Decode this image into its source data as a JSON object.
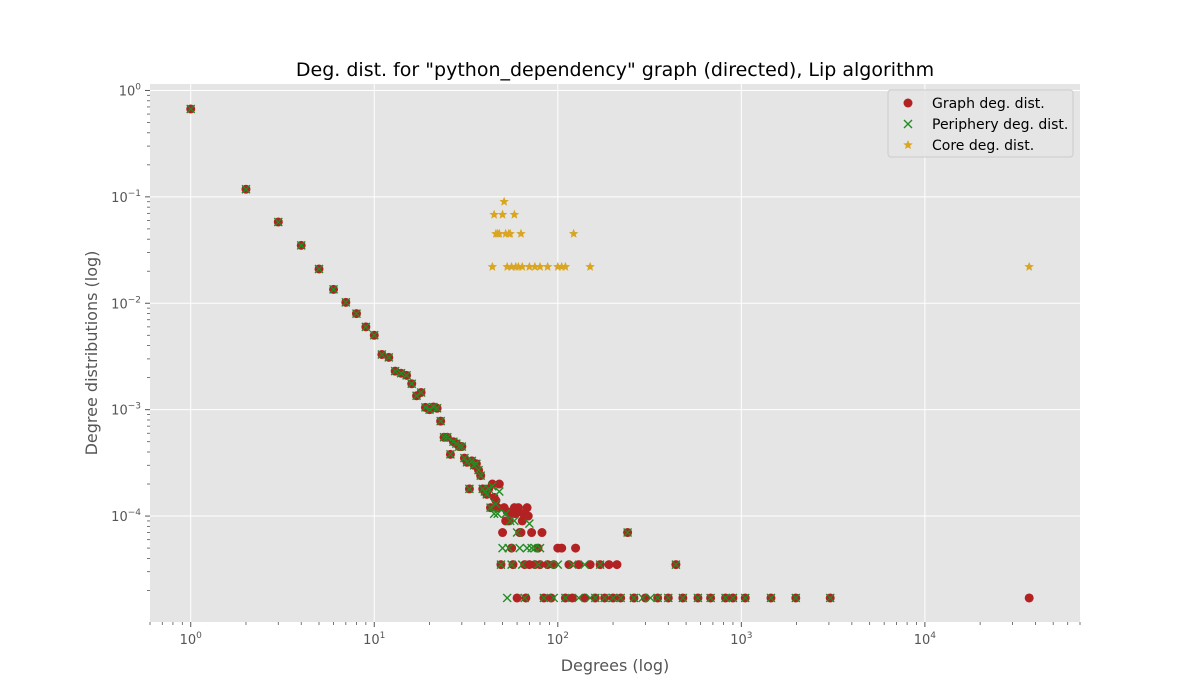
{
  "chart_data": {
    "type": "scatter",
    "title": "Deg. dist. for \"python_dependency\" graph (directed), Lip algorithm",
    "xlabel": "Degrees (log)",
    "ylabel": "Degree distributions (log)",
    "xscale": "log",
    "yscale": "log",
    "xlim": [
      0.6,
      70000
    ],
    "ylim": [
      1.01e-05,
      1.15
    ],
    "grid": true,
    "legend_position": "top-right",
    "x_ticks": [
      {
        "value": 1,
        "base": "10",
        "exp": "0"
      },
      {
        "value": 10,
        "base": "10",
        "exp": "1"
      },
      {
        "value": 100,
        "base": "10",
        "exp": "2"
      },
      {
        "value": 1000,
        "base": "10",
        "exp": "3"
      },
      {
        "value": 10000,
        "base": "10",
        "exp": "4"
      }
    ],
    "y_ticks": [
      {
        "value": 1,
        "base": "10",
        "exp": "0"
      },
      {
        "value": 0.1,
        "base": "10",
        "exp": "−1"
      },
      {
        "value": 0.01,
        "base": "10",
        "exp": "−2"
      },
      {
        "value": 0.001,
        "base": "10",
        "exp": "−3"
      },
      {
        "value": 0.0001,
        "base": "10",
        "exp": "−4"
      }
    ],
    "series": [
      {
        "name": "Graph deg. dist.",
        "marker": "circle",
        "color": "#b22222",
        "points": [
          [
            1,
            0.67
          ],
          [
            2,
            0.118
          ],
          [
            3,
            0.058
          ],
          [
            4,
            0.035
          ],
          [
            5,
            0.021
          ],
          [
            6,
            0.0135
          ],
          [
            7,
            0.0102
          ],
          [
            8,
            0.008
          ],
          [
            9,
            0.006
          ],
          [
            10,
            0.005
          ],
          [
            11,
            0.0033
          ],
          [
            12,
            0.0031
          ],
          [
            13,
            0.0023
          ],
          [
            14,
            0.0022
          ],
          [
            15,
            0.0021
          ],
          [
            16,
            0.00175
          ],
          [
            17,
            0.00135
          ],
          [
            18,
            0.00145
          ],
          [
            19,
            0.00105
          ],
          [
            20,
            0.001
          ],
          [
            21,
            0.00106
          ],
          [
            22,
            0.00103
          ],
          [
            23,
            0.00078
          ],
          [
            24,
            0.00055
          ],
          [
            25,
            0.00055
          ],
          [
            26,
            0.00038
          ],
          [
            27,
            0.0005
          ],
          [
            28,
            0.00048
          ],
          [
            29,
            0.00045
          ],
          [
            30,
            0.00045
          ],
          [
            31,
            0.00035
          ],
          [
            32,
            0.00032
          ],
          [
            33,
            0.00018
          ],
          [
            34,
            0.00033
          ],
          [
            35,
            0.0003
          ],
          [
            36,
            0.00031
          ],
          [
            37,
            0.00027
          ],
          [
            38,
            0.00024
          ],
          [
            39,
            0.00018
          ],
          [
            40,
            0.00017
          ],
          [
            41,
            0.00016
          ],
          [
            42,
            0.00018
          ],
          [
            43,
            0.00012
          ],
          [
            44,
            0.0002
          ],
          [
            45,
            0.00015
          ],
          [
            46,
            0.00014
          ],
          [
            47,
            0.00012
          ],
          [
            48,
            0.0002
          ],
          [
            49,
            3.5e-05
          ],
          [
            50,
            7e-05
          ],
          [
            51,
            0.00012
          ],
          [
            52,
            9e-05
          ],
          [
            53,
            0.00011
          ],
          [
            54,
            9e-05
          ],
          [
            55,
            0.000105
          ],
          [
            56,
            5e-05
          ],
          [
            57,
            3.5e-05
          ],
          [
            58,
            0.00012
          ],
          [
            59,
            0.000105
          ],
          [
            60,
            1.7e-05
          ],
          [
            61,
            0.00012
          ],
          [
            62,
            7e-05
          ],
          [
            63,
            7e-05
          ],
          [
            64,
            9e-05
          ],
          [
            65,
            0.000105
          ],
          [
            66,
            3.5e-05
          ],
          [
            67,
            1.7e-05
          ],
          [
            68,
            0.00012
          ],
          [
            69,
            0.0001
          ],
          [
            70,
            3.5e-05
          ],
          [
            72,
            7e-05
          ],
          [
            75,
            3.5e-05
          ],
          [
            78,
            5e-05
          ],
          [
            80,
            3.5e-05
          ],
          [
            82,
            7e-05
          ],
          [
            84,
            1.7e-05
          ],
          [
            88,
            3.5e-05
          ],
          [
            92,
            1.7e-05
          ],
          [
            95,
            3.5e-05
          ],
          [
            100,
            5e-05
          ],
          [
            105,
            5e-05
          ],
          [
            110,
            1.7e-05
          ],
          [
            115,
            3.5e-05
          ],
          [
            120,
            1.7e-05
          ],
          [
            125,
            5e-05
          ],
          [
            130,
            3.5e-05
          ],
          [
            140,
            1.7e-05
          ],
          [
            150,
            3.5e-05
          ],
          [
            160,
            1.7e-05
          ],
          [
            170,
            3.5e-05
          ],
          [
            180,
            1.7e-05
          ],
          [
            190,
            3.5e-05
          ],
          [
            200,
            1.7e-05
          ],
          [
            210,
            3.5e-05
          ],
          [
            220,
            1.7e-05
          ],
          [
            240,
            7e-05
          ],
          [
            260,
            1.7e-05
          ],
          [
            300,
            1.7e-05
          ],
          [
            350,
            1.7e-05
          ],
          [
            400,
            1.7e-05
          ],
          [
            440,
            3.5e-05
          ],
          [
            480,
            1.7e-05
          ],
          [
            580,
            1.7e-05
          ],
          [
            680,
            1.7e-05
          ],
          [
            820,
            1.7e-05
          ],
          [
            900,
            1.7e-05
          ],
          [
            1050,
            1.7e-05
          ],
          [
            1450,
            1.7e-05
          ],
          [
            1980,
            1.7e-05
          ],
          [
            3050,
            1.7e-05
          ],
          [
            37000,
            1.7e-05
          ]
        ]
      },
      {
        "name": "Periphery deg. dist.",
        "marker": "x",
        "color": "#228b22",
        "points": [
          [
            1,
            0.67
          ],
          [
            2,
            0.118
          ],
          [
            3,
            0.058
          ],
          [
            4,
            0.035
          ],
          [
            5,
            0.021
          ],
          [
            6,
            0.0135
          ],
          [
            7,
            0.0102
          ],
          [
            8,
            0.008
          ],
          [
            9,
            0.006
          ],
          [
            10,
            0.005
          ],
          [
            11,
            0.0033
          ],
          [
            12,
            0.0031
          ],
          [
            13,
            0.0023
          ],
          [
            14,
            0.0022
          ],
          [
            15,
            0.0021
          ],
          [
            16,
            0.00175
          ],
          [
            17,
            0.00135
          ],
          [
            18,
            0.00145
          ],
          [
            19,
            0.00105
          ],
          [
            20,
            0.001
          ],
          [
            21,
            0.00106
          ],
          [
            22,
            0.00103
          ],
          [
            23,
            0.00078
          ],
          [
            24,
            0.00055
          ],
          [
            25,
            0.00055
          ],
          [
            26,
            0.00038
          ],
          [
            27,
            0.0005
          ],
          [
            28,
            0.00048
          ],
          [
            29,
            0.00045
          ],
          [
            30,
            0.00045
          ],
          [
            31,
            0.00035
          ],
          [
            32,
            0.00032
          ],
          [
            33,
            0.00018
          ],
          [
            34,
            0.00033
          ],
          [
            35,
            0.0003
          ],
          [
            36,
            0.00031
          ],
          [
            37,
            0.00027
          ],
          [
            38,
            0.00024
          ],
          [
            39,
            0.00018
          ],
          [
            40,
            0.00017
          ],
          [
            41,
            0.00016
          ],
          [
            42,
            0.00018
          ],
          [
            43,
            0.00012
          ],
          [
            44,
            0.00019
          ],
          [
            45,
            0.000105
          ],
          [
            46,
            0.00013
          ],
          [
            47,
            0.000105
          ],
          [
            48,
            0.00017
          ],
          [
            49,
            3.5e-05
          ],
          [
            50,
            5e-05
          ],
          [
            52,
            0.000105
          ],
          [
            53,
            1.7e-05
          ],
          [
            54,
            5e-05
          ],
          [
            55,
            9e-05
          ],
          [
            56,
            3.5e-05
          ],
          [
            58,
            9e-05
          ],
          [
            60,
            7e-05
          ],
          [
            62,
            5e-05
          ],
          [
            64,
            3.5e-05
          ],
          [
            66,
            1.7e-05
          ],
          [
            68,
            5e-05
          ],
          [
            70,
            8.5e-05
          ],
          [
            72,
            5e-05
          ],
          [
            75,
            5e-05
          ],
          [
            78,
            3.5e-05
          ],
          [
            80,
            5e-05
          ],
          [
            84,
            1.7e-05
          ],
          [
            90,
            3.5e-05
          ],
          [
            95,
            1.7e-05
          ],
          [
            100,
            3.5e-05
          ],
          [
            110,
            1.7e-05
          ],
          [
            120,
            3.5e-05
          ],
          [
            130,
            1.7e-05
          ],
          [
            140,
            3.5e-05
          ],
          [
            150,
            1.7e-05
          ],
          [
            160,
            1.7e-05
          ],
          [
            170,
            3.5e-05
          ],
          [
            180,
            1.7e-05
          ],
          [
            200,
            1.7e-05
          ],
          [
            220,
            1.7e-05
          ],
          [
            240,
            7e-05
          ],
          [
            260,
            1.7e-05
          ],
          [
            290,
            1.7e-05
          ],
          [
            320,
            1.7e-05
          ],
          [
            350,
            1.7e-05
          ],
          [
            400,
            1.7e-05
          ],
          [
            440,
            3.5e-05
          ],
          [
            480,
            1.7e-05
          ],
          [
            580,
            1.7e-05
          ],
          [
            680,
            1.7e-05
          ],
          [
            820,
            1.7e-05
          ],
          [
            900,
            1.7e-05
          ],
          [
            1050,
            1.7e-05
          ],
          [
            1450,
            1.7e-05
          ],
          [
            1980,
            1.7e-05
          ],
          [
            3050,
            1.7e-05
          ]
        ]
      },
      {
        "name": "Core deg. dist.",
        "marker": "star",
        "color": "#daa520",
        "points": [
          [
            44,
            0.022
          ],
          [
            45,
            0.068
          ],
          [
            46,
            0.045
          ],
          [
            47,
            0.045
          ],
          [
            48,
            0.045
          ],
          [
            50,
            0.068
          ],
          [
            51,
            0.09
          ],
          [
            52,
            0.045
          ],
          [
            53,
            0.022
          ],
          [
            54,
            0.045
          ],
          [
            55,
            0.045
          ],
          [
            56,
            0.022
          ],
          [
            58,
            0.068
          ],
          [
            59,
            0.022
          ],
          [
            61,
            0.022
          ],
          [
            63,
            0.045
          ],
          [
            64,
            0.022
          ],
          [
            70,
            0.022
          ],
          [
            75,
            0.022
          ],
          [
            80,
            0.022
          ],
          [
            88,
            0.022
          ],
          [
            100,
            0.022
          ],
          [
            105,
            0.022
          ],
          [
            110,
            0.022
          ],
          [
            122,
            0.045
          ],
          [
            150,
            0.022
          ],
          [
            37000,
            0.022
          ]
        ]
      }
    ]
  }
}
